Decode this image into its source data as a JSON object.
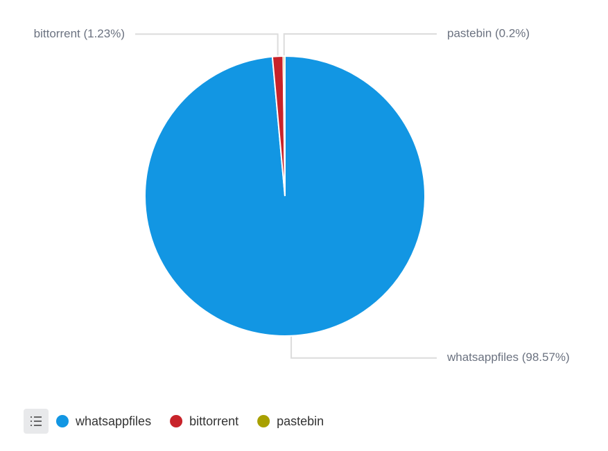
{
  "chart_data": {
    "type": "pie",
    "categories": [
      "whatsappfiles",
      "bittorrent",
      "pastebin"
    ],
    "values": [
      98.57,
      1.23,
      0.2
    ],
    "value_labels": [
      "whatsappfiles (98.57%)",
      "bittorrent (1.23%)",
      "pastebin (0.2%)"
    ],
    "colors": [
      "#1296e3",
      "#c8232a",
      "#a8a000"
    ],
    "legend": "bottom-left"
  }
}
